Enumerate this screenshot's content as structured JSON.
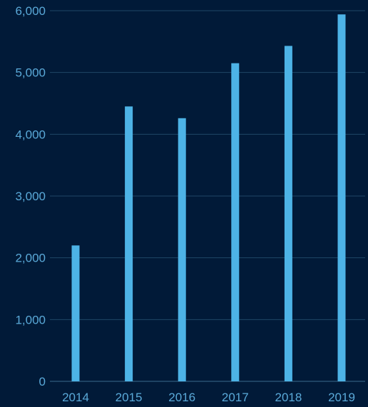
{
  "chart_data": {
    "type": "bar",
    "categories": [
      "2014",
      "2015",
      "2016",
      "2017",
      "2018",
      "2019"
    ],
    "values": [
      2200,
      4450,
      4260,
      5150,
      5430,
      5940
    ],
    "ylim": [
      0,
      6000
    ],
    "yticks": [
      0,
      1000,
      2000,
      3000,
      4000,
      5000,
      6000
    ],
    "ytick_labels": [
      "0",
      "1,000",
      "2,000",
      "3,000",
      "4,000",
      "5,000",
      "6,000"
    ],
    "grid": true,
    "colors": {
      "background": "#011a38",
      "bar": "#4db3e6",
      "text": "#5aa9d8",
      "grid": "#1f4766"
    }
  }
}
